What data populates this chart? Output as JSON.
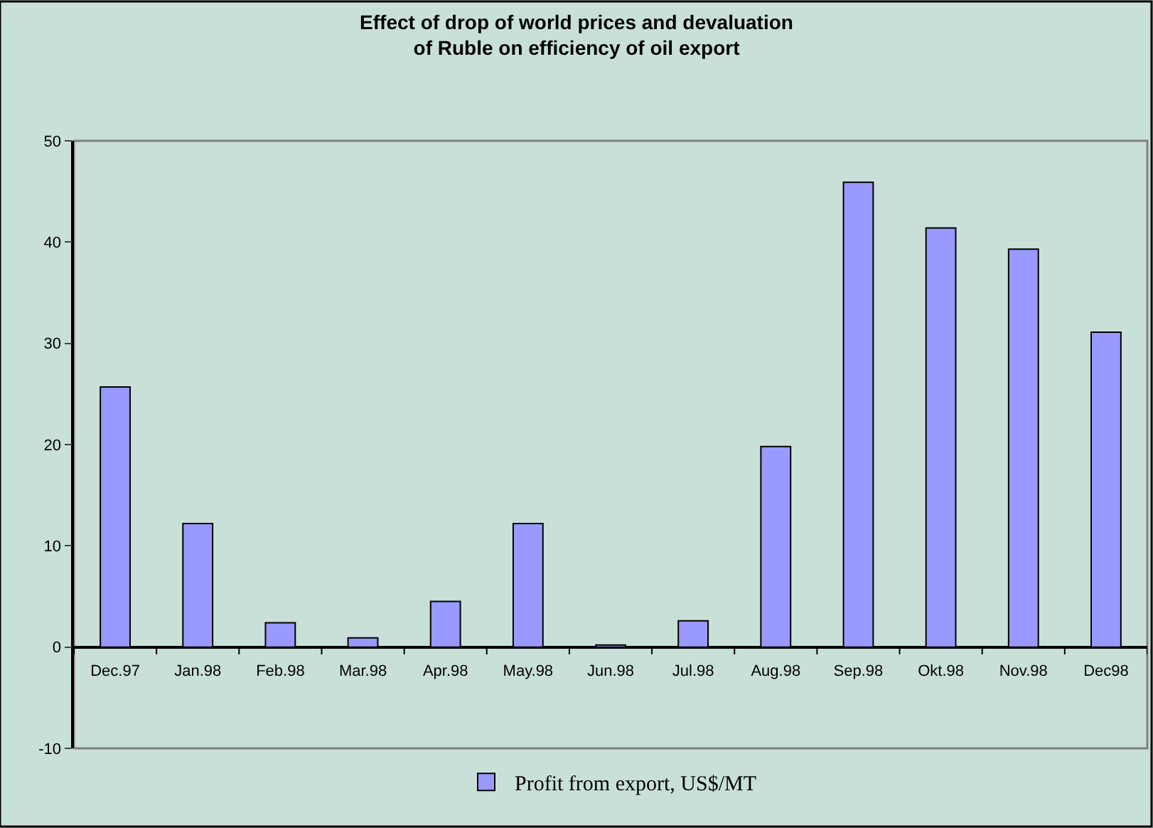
{
  "chart_data": {
    "type": "bar",
    "title": "Effect of drop of world prices and devaluation\nof Ruble on efficiency of oil export",
    "categories": [
      "Dec.97",
      "Jan.98",
      "Feb.98",
      "Mar.98",
      "Apr.98",
      "May.98",
      "Jun.98",
      "Jul.98",
      "Aug.98",
      "Sep.98",
      "Okt.98",
      "Nov.98",
      "Dec98"
    ],
    "series": [
      {
        "name": "Profit from export, US$/MT",
        "color": "#9999ff",
        "values": [
          25.7,
          12.2,
          2.4,
          0.9,
          4.5,
          12.2,
          0.2,
          2.6,
          19.8,
          45.9,
          41.4,
          39.3,
          31.1
        ]
      }
    ],
    "ylim": [
      -10,
      50
    ],
    "yticks": [
      -10,
      0,
      10,
      20,
      30,
      40,
      50
    ],
    "grid": false,
    "legend": "bottom"
  }
}
